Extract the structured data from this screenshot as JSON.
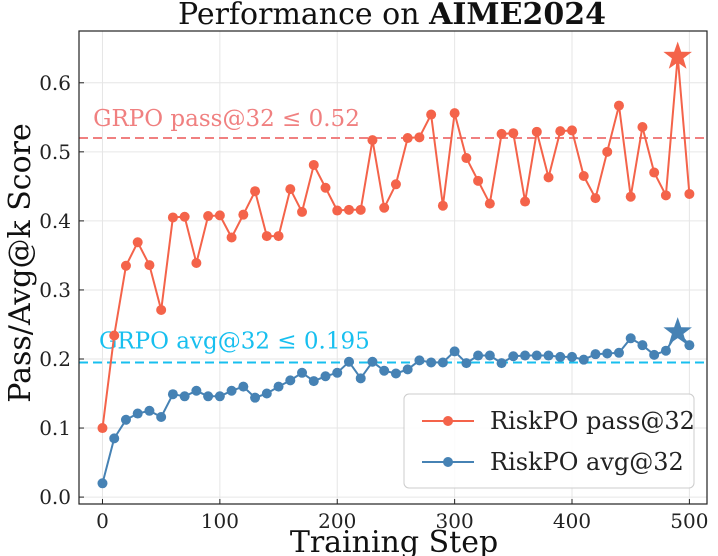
{
  "chart_data": {
    "type": "line",
    "title_prefix": "Performance on ",
    "title_bold": "AIME2024",
    "xlabel": "Training Step",
    "ylabel": "Pass/Avg@k Score",
    "xlim": [
      -20,
      515
    ],
    "ylim": [
      -0.01,
      0.675
    ],
    "xticks": [
      0,
      100,
      200,
      300,
      400,
      500
    ],
    "yticks": [
      0.0,
      0.1,
      0.2,
      0.3,
      0.4,
      0.5,
      0.6
    ],
    "ytick_labels": [
      "0.0",
      "0.1",
      "0.2",
      "0.3",
      "0.4",
      "0.5",
      "0.6"
    ],
    "grid": true,
    "legend_position": "lower-right",
    "reference_lines": [
      {
        "label": "GRPO pass@32 ≤ 0.52",
        "y": 0.52,
        "color": "#f08080"
      },
      {
        "label": "GRPO avg@32 ≤ 0.195",
        "y": 0.195,
        "color": "#17bfef"
      }
    ],
    "series": [
      {
        "name": "RiskPO pass@32",
        "color": "#f4634a",
        "x": [
          0,
          10,
          20,
          30,
          40,
          50,
          60,
          70,
          80,
          90,
          100,
          110,
          120,
          130,
          140,
          150,
          160,
          170,
          180,
          190,
          200,
          210,
          220,
          230,
          240,
          250,
          260,
          270,
          280,
          290,
          300,
          310,
          320,
          330,
          340,
          350,
          360,
          370,
          380,
          390,
          400,
          410,
          420,
          430,
          440,
          450,
          460,
          470,
          480,
          490,
          500
        ],
        "values": [
          0.1,
          0.234,
          0.335,
          0.369,
          0.336,
          0.271,
          0.405,
          0.406,
          0.339,
          0.407,
          0.408,
          0.376,
          0.409,
          0.443,
          0.378,
          0.378,
          0.446,
          0.413,
          0.481,
          0.448,
          0.415,
          0.416,
          0.416,
          0.517,
          0.419,
          0.453,
          0.52,
          0.521,
          0.554,
          0.422,
          0.556,
          0.491,
          0.458,
          0.425,
          0.526,
          0.527,
          0.428,
          0.529,
          0.463,
          0.53,
          0.531,
          0.465,
          0.433,
          0.5,
          0.567,
          0.435,
          0.536,
          0.47,
          0.437,
          0.638,
          0.439
        ],
        "star": {
          "x": 490,
          "y": 0.638
        }
      },
      {
        "name": "RiskPO avg@32",
        "color": "#4682b4",
        "x": [
          0,
          10,
          20,
          30,
          40,
          50,
          60,
          70,
          80,
          90,
          100,
          110,
          120,
          130,
          140,
          150,
          160,
          170,
          180,
          190,
          200,
          210,
          220,
          230,
          240,
          250,
          260,
          270,
          280,
          290,
          300,
          310,
          320,
          330,
          340,
          350,
          360,
          370,
          380,
          390,
          400,
          410,
          420,
          430,
          440,
          450,
          460,
          470,
          480,
          490,
          500
        ],
        "values": [
          0.02,
          0.085,
          0.112,
          0.121,
          0.125,
          0.116,
          0.149,
          0.146,
          0.154,
          0.146,
          0.146,
          0.154,
          0.16,
          0.144,
          0.15,
          0.16,
          0.169,
          0.18,
          0.168,
          0.175,
          0.18,
          0.196,
          0.172,
          0.196,
          0.183,
          0.179,
          0.185,
          0.198,
          0.195,
          0.195,
          0.211,
          0.194,
          0.205,
          0.205,
          0.194,
          0.204,
          0.205,
          0.205,
          0.205,
          0.203,
          0.203,
          0.199,
          0.207,
          0.208,
          0.209,
          0.23,
          0.22,
          0.206,
          0.212,
          0.239,
          0.22
        ],
        "star": {
          "x": 490,
          "y": 0.239
        }
      }
    ]
  }
}
